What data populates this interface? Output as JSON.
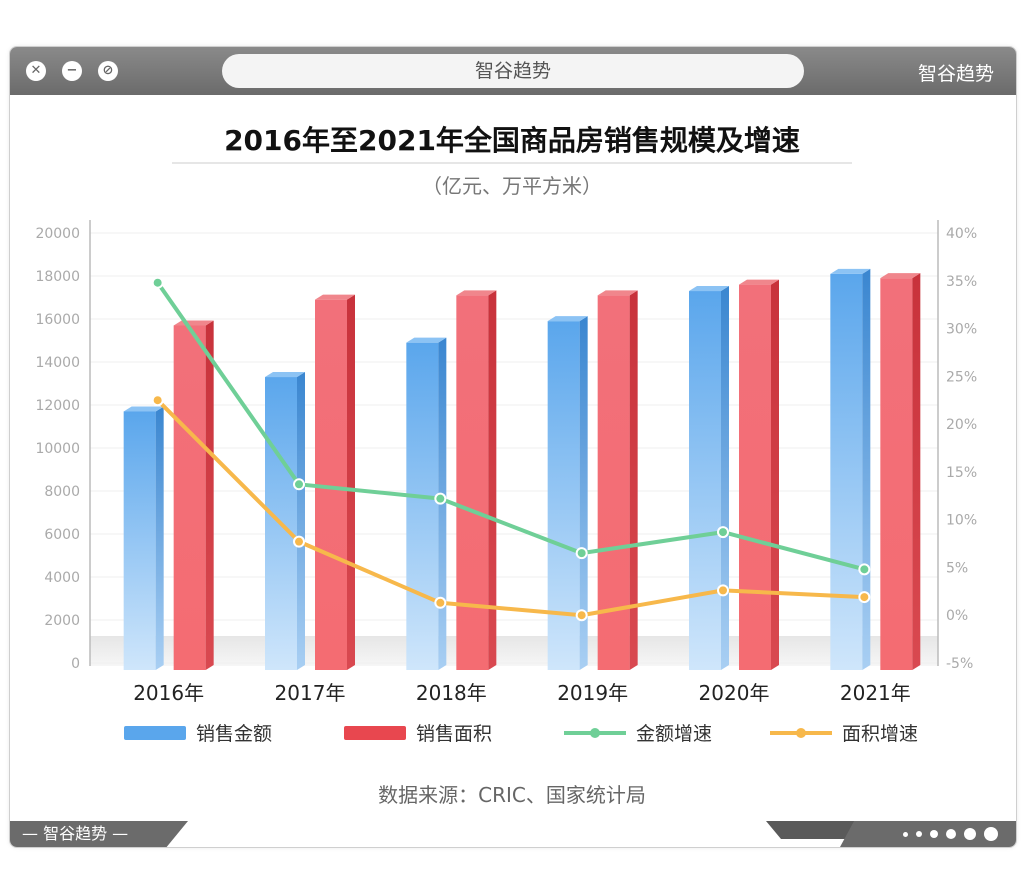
{
  "window": {
    "address_text": "智谷趋势",
    "brand_top_right": "智谷趋势",
    "footer_brand": "— 智谷趋势 —"
  },
  "colors": {
    "blue": "#5aa6ec",
    "red": "#e8474f",
    "green": "#6fcf97",
    "orange": "#f7b84b"
  },
  "chart_data": {
    "type": "bar",
    "title": "2016年至2021年全国商品房销售规模及增速",
    "subtitle": "（亿元、万平方米）",
    "categories": [
      "2016年",
      "2017年",
      "2018年",
      "2019年",
      "2020年",
      "2021年"
    ],
    "series": [
      {
        "name": "销售金额",
        "type": "bar",
        "axis": "left",
        "values": [
          11700,
          13300,
          14900,
          15900,
          17300,
          18100
        ]
      },
      {
        "name": "销售面积",
        "type": "bar",
        "axis": "left",
        "values": [
          15700,
          16900,
          17100,
          17100,
          17600,
          17900
        ]
      },
      {
        "name": "金额增速",
        "type": "line",
        "axis": "right",
        "values": [
          34.8,
          13.7,
          12.2,
          6.5,
          8.7,
          4.8
        ]
      },
      {
        "name": "面积增速",
        "type": "line",
        "axis": "right",
        "values": [
          22.5,
          7.7,
          1.3,
          0.0,
          2.6,
          1.9
        ]
      }
    ],
    "y_left": {
      "ticks": [
        "0",
        "2000",
        "4000",
        "6000",
        "8000",
        "10000",
        "12000",
        "14000",
        "16000",
        "18000",
        "20000"
      ],
      "ylim": [
        0,
        20000
      ]
    },
    "y_right": {
      "ticks": [
        "-5%",
        "0%",
        "5%",
        "10%",
        "15%",
        "20%",
        "25%",
        "30%",
        "35%",
        "40%"
      ],
      "ylim": [
        -5,
        40
      ]
    },
    "legend": [
      "销售金额",
      "销售面积",
      "金额增速",
      "面积增速"
    ],
    "legend_position": "bottom",
    "source": "数据来源：CRIC、国家统计局"
  }
}
